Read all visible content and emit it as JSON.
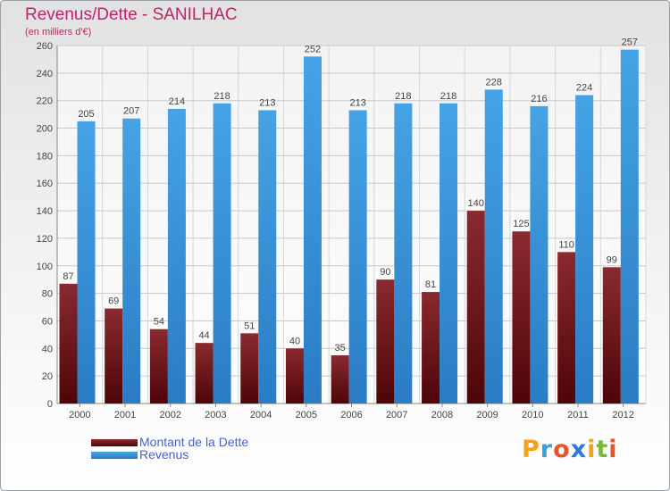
{
  "title": "Revenus/Dette - SANILHAC",
  "subtitle": "(en milliers d'€)",
  "colors": {
    "title": "#c0226a",
    "dette": "#7a1c22",
    "revenus": "#3a95dc",
    "legend_text": "#4a5fd0"
  },
  "legend": [
    {
      "label": "Montant de la Dette",
      "color": "#6b0e14"
    },
    {
      "label": "Revenus",
      "color": "#3a95dc"
    }
  ],
  "logo": {
    "letters": [
      "P",
      "r",
      "o",
      "x",
      "i",
      "t",
      "i"
    ],
    "colors": [
      "#f2a31a",
      "#3aa0e0",
      "#e8542a",
      "#2e7bd6",
      "#f2a31a",
      "#7ab83a",
      "#e8542a"
    ]
  },
  "chart_data": {
    "type": "bar",
    "categories": [
      "2000",
      "2001",
      "2002",
      "2003",
      "2004",
      "2005",
      "2006",
      "2007",
      "2008",
      "2009",
      "2010",
      "2011",
      "2012"
    ],
    "series": [
      {
        "name": "Montant de la Dette",
        "values": [
          87,
          69,
          54,
          44,
          51,
          40,
          35,
          90,
          81,
          140,
          125,
          110,
          99
        ]
      },
      {
        "name": "Revenus",
        "values": [
          205,
          207,
          214,
          218,
          213,
          252,
          213,
          218,
          218,
          228,
          216,
          224,
          257
        ]
      }
    ],
    "ylim": [
      0,
      260
    ],
    "yticks": [
      0,
      20,
      40,
      60,
      80,
      100,
      120,
      140,
      160,
      180,
      200,
      220,
      240,
      260
    ],
    "grid": true,
    "legend_position": "bottom-left"
  }
}
